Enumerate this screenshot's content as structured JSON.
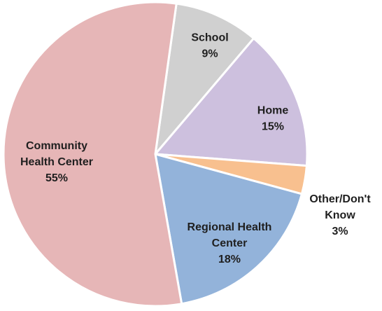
{
  "chart_data": {
    "type": "pie",
    "title": "",
    "slices": [
      {
        "label_lines": [
          "School",
          "9%"
        ],
        "value": 9,
        "color": "#d0d0d0"
      },
      {
        "label_lines": [
          "Home",
          "15%"
        ],
        "value": 15,
        "color": "#cdc0de"
      },
      {
        "label_lines": [
          "Other/Don't",
          "Know",
          "3%"
        ],
        "value": 3,
        "color": "#f8c08f"
      },
      {
        "label_lines": [
          "Regional Health",
          "Center",
          "18%"
        ],
        "value": 18,
        "color": "#93b3da"
      },
      {
        "label_lines": [
          "Community",
          "Health Center",
          "55%"
        ],
        "value": 55,
        "color": "#e6b6b7"
      }
    ],
    "start_angle_deg": 8
  }
}
